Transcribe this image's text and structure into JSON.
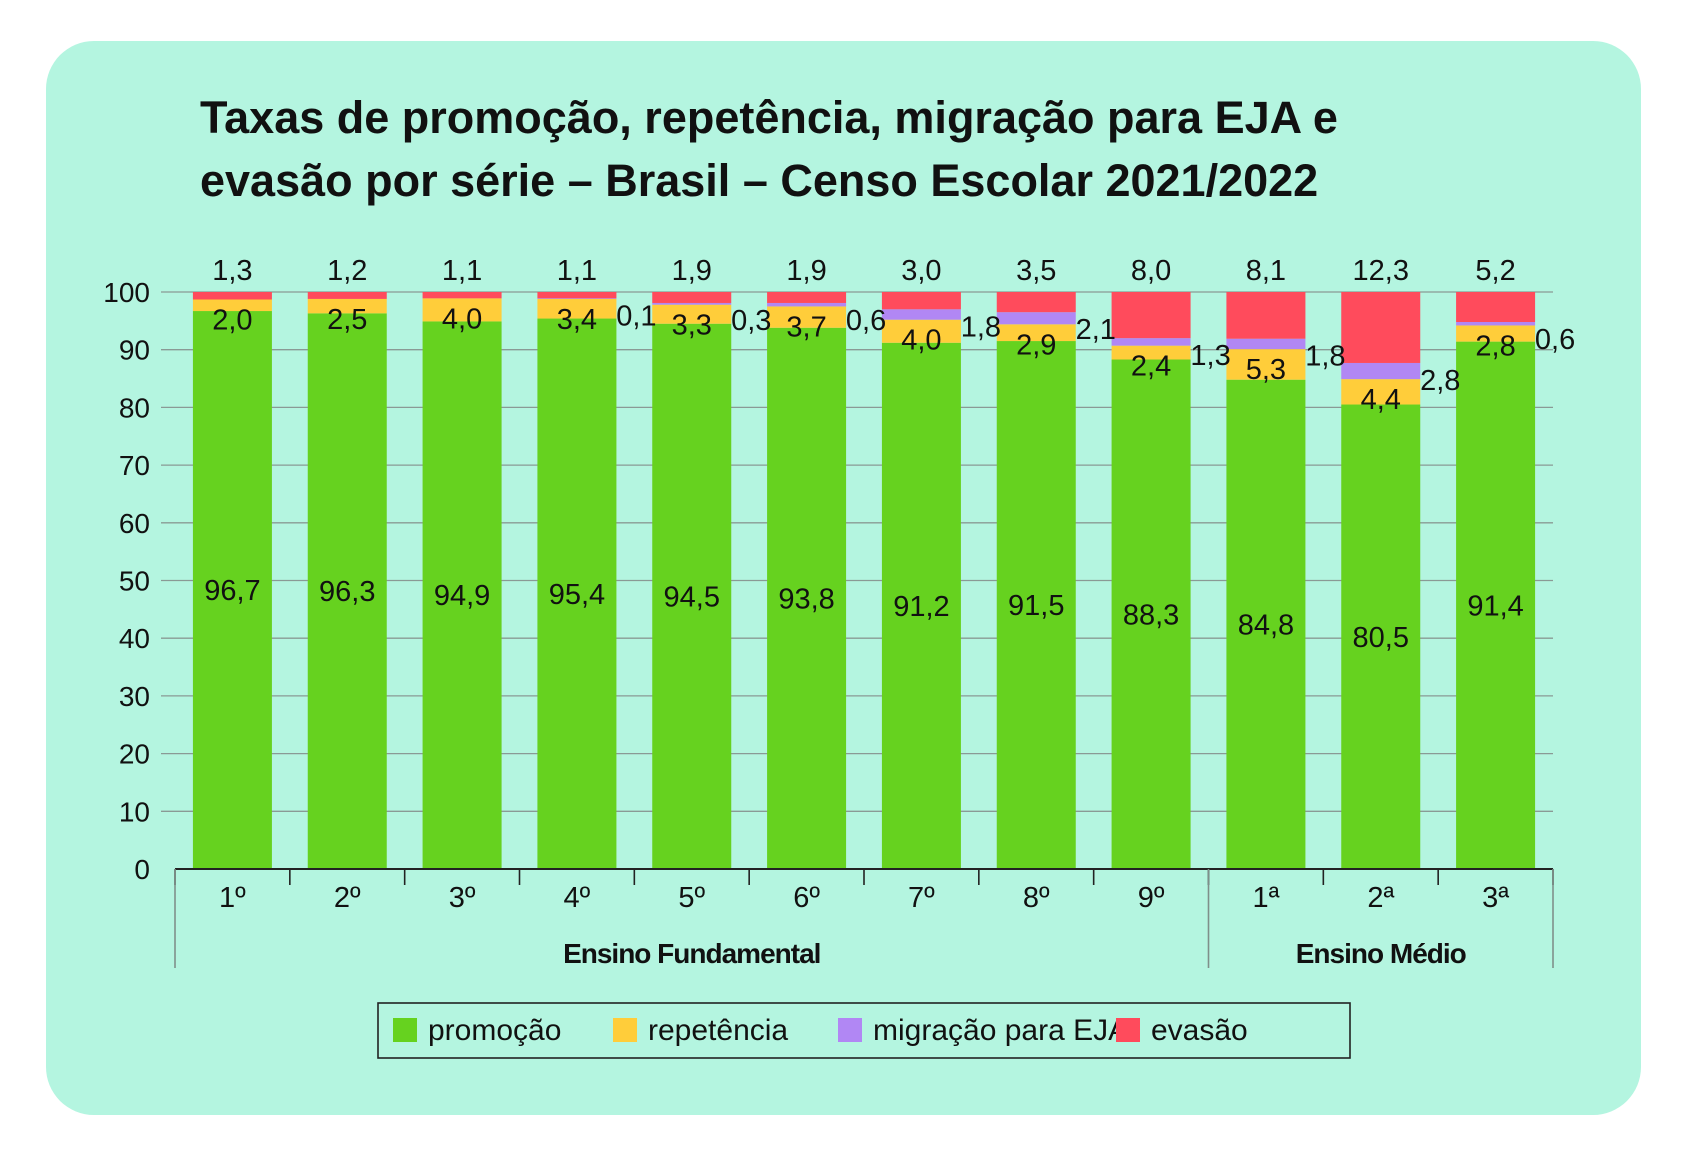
{
  "chart_data": {
    "type": "bar",
    "stacked": true,
    "title_lines": [
      "Taxas de promoção, repetência, migração para EJA e",
      "evasão por série – Brasil – Censo Escolar 2021/2022"
    ],
    "categories": [
      "1º",
      "2º",
      "3º",
      "4º",
      "5º",
      "6º",
      "7º",
      "8º",
      "9º",
      "1ª",
      "2ª",
      "3ª"
    ],
    "groups": [
      {
        "label": "Ensino Fundamental",
        "start": 0,
        "end": 8
      },
      {
        "label": "Ensino Médio",
        "start": 9,
        "end": 11
      }
    ],
    "series": [
      {
        "name": "promoção",
        "color": "#66d21f",
        "values": [
          96.7,
          96.3,
          94.9,
          95.4,
          94.5,
          93.8,
          91.2,
          91.5,
          88.3,
          84.8,
          80.5,
          91.4
        ],
        "labels": [
          "96,7",
          "96,3",
          "94,9",
          "95,4",
          "94,5",
          "93,8",
          "91,2",
          "91,5",
          "88,3",
          "84,8",
          "80,5",
          "91,4"
        ]
      },
      {
        "name": "repetência",
        "color": "#ffcd3a",
        "values": [
          2.0,
          2.5,
          4.0,
          3.4,
          3.3,
          3.7,
          4.0,
          2.9,
          2.4,
          5.3,
          4.4,
          2.8
        ],
        "labels": [
          "2,0",
          "2,5",
          "4,0",
          "3,4",
          "3,3",
          "3,7",
          "4,0",
          "2,9",
          "2,4",
          "5,3",
          "4,4",
          "2,8"
        ]
      },
      {
        "name": "migração para EJA",
        "color": "#b187f4",
        "values": [
          0,
          0,
          0,
          0.1,
          0.3,
          0.6,
          1.8,
          2.1,
          1.3,
          1.8,
          2.8,
          0.6
        ],
        "labels": [
          "",
          "",
          "",
          "0,1",
          "0,3",
          "0,6",
          "1,8",
          "2,1",
          "1,3",
          "1,8",
          "2,8",
          "0,6"
        ]
      },
      {
        "name": "evasão",
        "color": "#ff4b5c",
        "values": [
          1.3,
          1.2,
          1.1,
          1.1,
          1.9,
          1.9,
          3.0,
          3.5,
          8.0,
          8.1,
          12.3,
          5.2
        ],
        "labels": [
          "1,3",
          "1,2",
          "1,1",
          "1,1",
          "1,9",
          "1,9",
          "3,0",
          "3,5",
          "8,0",
          "8,1",
          "12,3",
          "5,2"
        ]
      }
    ],
    "y_ticks": [
      0,
      10,
      20,
      30,
      40,
      50,
      60,
      70,
      80,
      90,
      100
    ],
    "ylim": [
      0,
      100
    ],
    "grid": true,
    "legend_position": "bottom"
  }
}
